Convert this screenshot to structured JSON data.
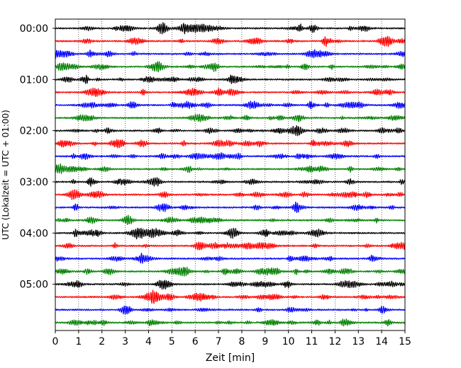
{
  "chart_data": {
    "type": "line",
    "title": "",
    "xlabel": "Zeit  [min]",
    "ylabel": "UTC (Lokalzeit = UTC + 01:00)",
    "xlim": [
      0,
      15
    ],
    "x_ticks": [
      "0",
      "1",
      "2",
      "3",
      "4",
      "5",
      "6",
      "7",
      "8",
      "9",
      "10",
      "11",
      "12",
      "13",
      "14",
      "15"
    ],
    "y_ticks": [
      "00:00",
      "01:00",
      "02:00",
      "03:00",
      "04:00",
      "05:00"
    ],
    "grid": "vertical dotted",
    "legend": "none",
    "trace_interval_minutes": 15,
    "trace_count": 24,
    "trace_colors": [
      "#000000",
      "#ff0000",
      "#0000ff",
      "#008000"
    ]
  }
}
